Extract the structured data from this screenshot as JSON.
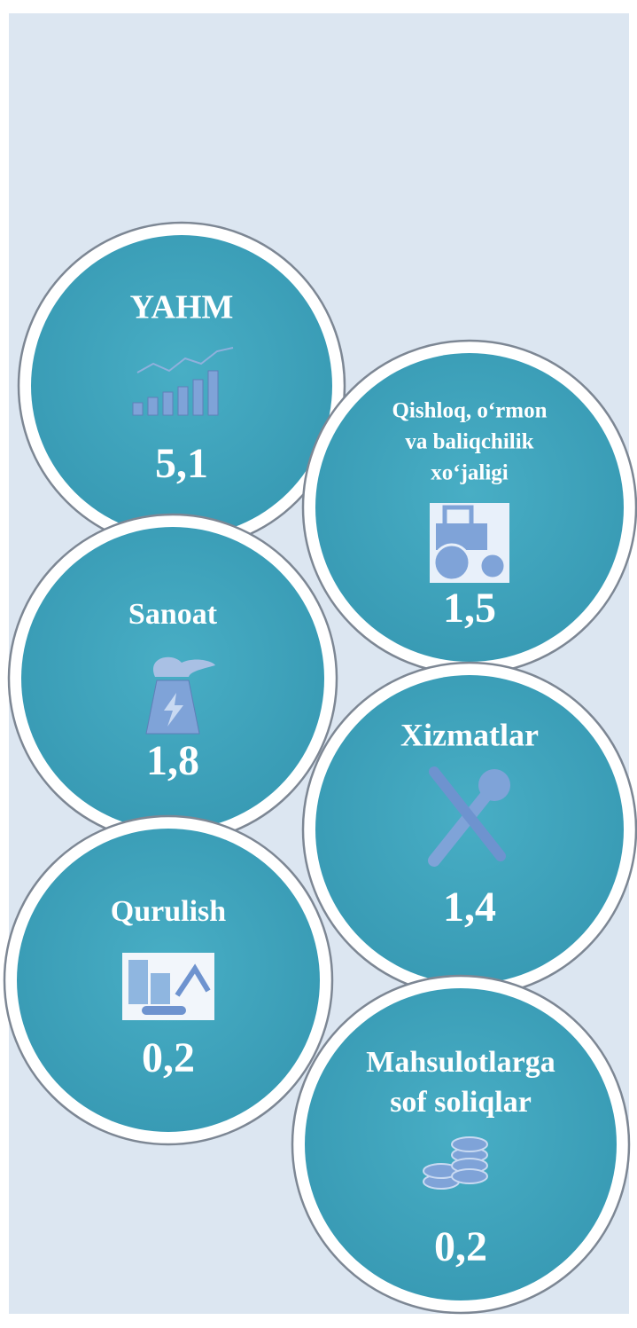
{
  "nodes": [
    {
      "title": [
        "YAHM"
      ],
      "value": "5,1"
    },
    {
      "title": [
        "Qishloq, o‘rmon",
        "va baliqchilik",
        "xo‘jaligi"
      ],
      "value": "1,5"
    },
    {
      "title": [
        "Sanoat"
      ],
      "value": "1,8"
    },
    {
      "title": [
        "Xizmatlar"
      ],
      "value": "1,4"
    },
    {
      "title": [
        "Qurulish"
      ],
      "value": "0,2"
    },
    {
      "title": [
        "Mahsulotlarga",
        "sof soliqlar"
      ],
      "value": "0,2"
    }
  ]
}
